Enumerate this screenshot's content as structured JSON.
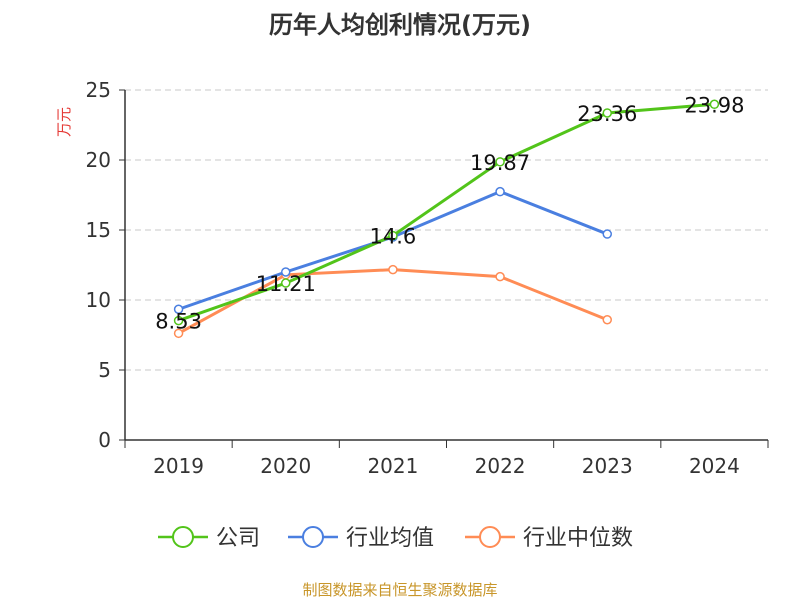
{
  "chart_data": {
    "type": "line",
    "title": "历年人均创利情况(万元)",
    "ylabel": "万元",
    "xlabel": "",
    "categories": [
      "2019",
      "2020",
      "2021",
      "2022",
      "2023",
      "2024"
    ],
    "ylim": [
      0,
      25
    ],
    "yticks": [
      0,
      5,
      10,
      15,
      20,
      25
    ],
    "grid": true,
    "legend_position": "bottom",
    "series": [
      {
        "name": "公司",
        "color": "#52c41a",
        "values": [
          8.53,
          11.21,
          14.6,
          19.87,
          23.36,
          23.98
        ],
        "labels": [
          "8.53",
          "11.21",
          "14.6",
          "19.87",
          "23.36",
          "23.98"
        ]
      },
      {
        "name": "行业均值",
        "color": "#4a7fe0",
        "values": [
          9.34,
          12.0,
          14.5,
          17.74,
          14.71,
          null
        ]
      },
      {
        "name": "行业中位数",
        "color": "#ff8c55",
        "values": [
          7.62,
          11.8,
          12.17,
          11.67,
          8.59,
          null
        ]
      }
    ]
  },
  "source": "制图数据来自恒生聚源数据库"
}
